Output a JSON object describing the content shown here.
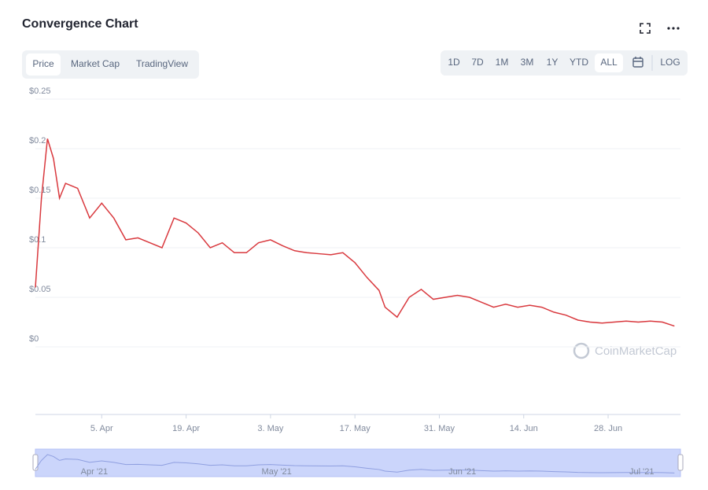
{
  "tabs": [
    "Price",
    "Market Cap",
    "TradingView"
  ],
  "active_tab": "Price",
  "ranges": [
    "1D",
    "7D",
    "1M",
    "3M",
    "1Y",
    "YTD",
    "ALL",
    "LOG"
  ],
  "active_range": "ALL",
  "watermark": "CoinMarketCap",
  "navigator": {
    "labels": [
      {
        "value": "2021-04-01",
        "label": "Apr '21"
      },
      {
        "value": "2021-05-01",
        "label": "May '21"
      },
      {
        "value": "2021-06-01",
        "label": "Jun '21"
      },
      {
        "value": "2021-07-01",
        "label": "Jul '21"
      }
    ]
  },
  "chart_data": {
    "type": "line",
    "title": "Convergence Chart",
    "color": "#d9393e",
    "grid": true,
    "x": [
      "2021-03-25",
      "2021-03-26",
      "2021-03-27",
      "2021-03-28",
      "2021-03-29",
      "2021-03-30",
      "2021-04-01",
      "2021-04-03",
      "2021-04-05",
      "2021-04-07",
      "2021-04-09",
      "2021-04-11",
      "2021-04-13",
      "2021-04-15",
      "2021-04-17",
      "2021-04-19",
      "2021-04-21",
      "2021-04-23",
      "2021-04-25",
      "2021-04-27",
      "2021-04-29",
      "2021-05-01",
      "2021-05-03",
      "2021-05-05",
      "2021-05-07",
      "2021-05-09",
      "2021-05-11",
      "2021-05-13",
      "2021-05-15",
      "2021-05-17",
      "2021-05-19",
      "2021-05-21",
      "2021-05-22",
      "2021-05-24",
      "2021-05-26",
      "2021-05-28",
      "2021-05-30",
      "2021-06-01",
      "2021-06-03",
      "2021-06-05",
      "2021-06-07",
      "2021-06-09",
      "2021-06-11",
      "2021-06-13",
      "2021-06-15",
      "2021-06-17",
      "2021-06-19",
      "2021-06-21",
      "2021-06-23",
      "2021-06-25",
      "2021-06-27",
      "2021-06-29",
      "2021-07-01",
      "2021-07-03",
      "2021-07-05",
      "2021-07-07",
      "2021-07-09"
    ],
    "values": [
      0.06,
      0.15,
      0.21,
      0.19,
      0.15,
      0.165,
      0.16,
      0.13,
      0.145,
      0.13,
      0.108,
      0.11,
      0.105,
      0.1,
      0.13,
      0.125,
      0.115,
      0.1,
      0.105,
      0.095,
      0.095,
      0.105,
      0.108,
      0.102,
      0.097,
      0.095,
      0.094,
      0.093,
      0.095,
      0.085,
      0.07,
      0.057,
      0.04,
      0.03,
      0.05,
      0.058,
      0.048,
      0.05,
      0.052,
      0.05,
      0.045,
      0.04,
      0.043,
      0.04,
      0.042,
      0.04,
      0.035,
      0.032,
      0.027,
      0.025,
      0.024,
      0.025,
      0.026,
      0.025,
      0.026,
      0.025,
      0.021
    ],
    "xlim": [
      "2021-03-25",
      "2021-07-10"
    ],
    "xticks": [
      {
        "value": "2021-04-05",
        "label": "5. Apr"
      },
      {
        "value": "2021-04-19",
        "label": "19. Apr"
      },
      {
        "value": "2021-05-03",
        "label": "3. May"
      },
      {
        "value": "2021-05-17",
        "label": "17. May"
      },
      {
        "value": "2021-05-31",
        "label": "31. May"
      },
      {
        "value": "2021-06-14",
        "label": "14. Jun"
      },
      {
        "value": "2021-06-28",
        "label": "28. Jun"
      }
    ],
    "ylim": [
      0,
      0.25
    ],
    "yticks": [
      {
        "value": 0,
        "label": "$0"
      },
      {
        "value": 0.05,
        "label": "$0.05"
      },
      {
        "value": 0.1,
        "label": "$0.1"
      },
      {
        "value": 0.15,
        "label": "$0.15"
      },
      {
        "value": 0.2,
        "label": "$0.2"
      },
      {
        "value": 0.25,
        "label": "$0.25"
      }
    ]
  }
}
